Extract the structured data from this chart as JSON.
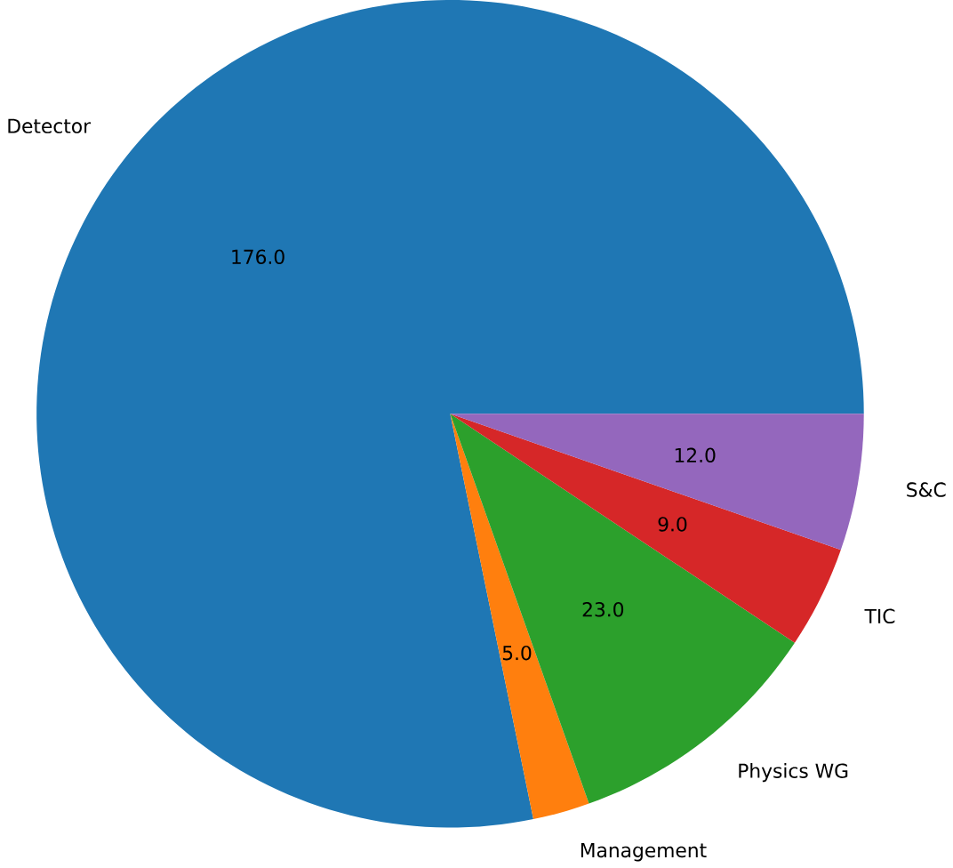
{
  "chart_data": {
    "type": "pie",
    "categories": [
      "Detector",
      "Management",
      "Physics WG",
      "TIC",
      "S&C"
    ],
    "values": [
      176,
      5,
      23,
      9,
      12
    ],
    "colors": [
      "#1f77b4",
      "#ff7f0e",
      "#2ca02c",
      "#d62728",
      "#9467bd"
    ],
    "data_labels": true,
    "value_labels": [
      "176.0",
      "5.0",
      "23.0",
      "9.0",
      "12.0"
    ]
  }
}
